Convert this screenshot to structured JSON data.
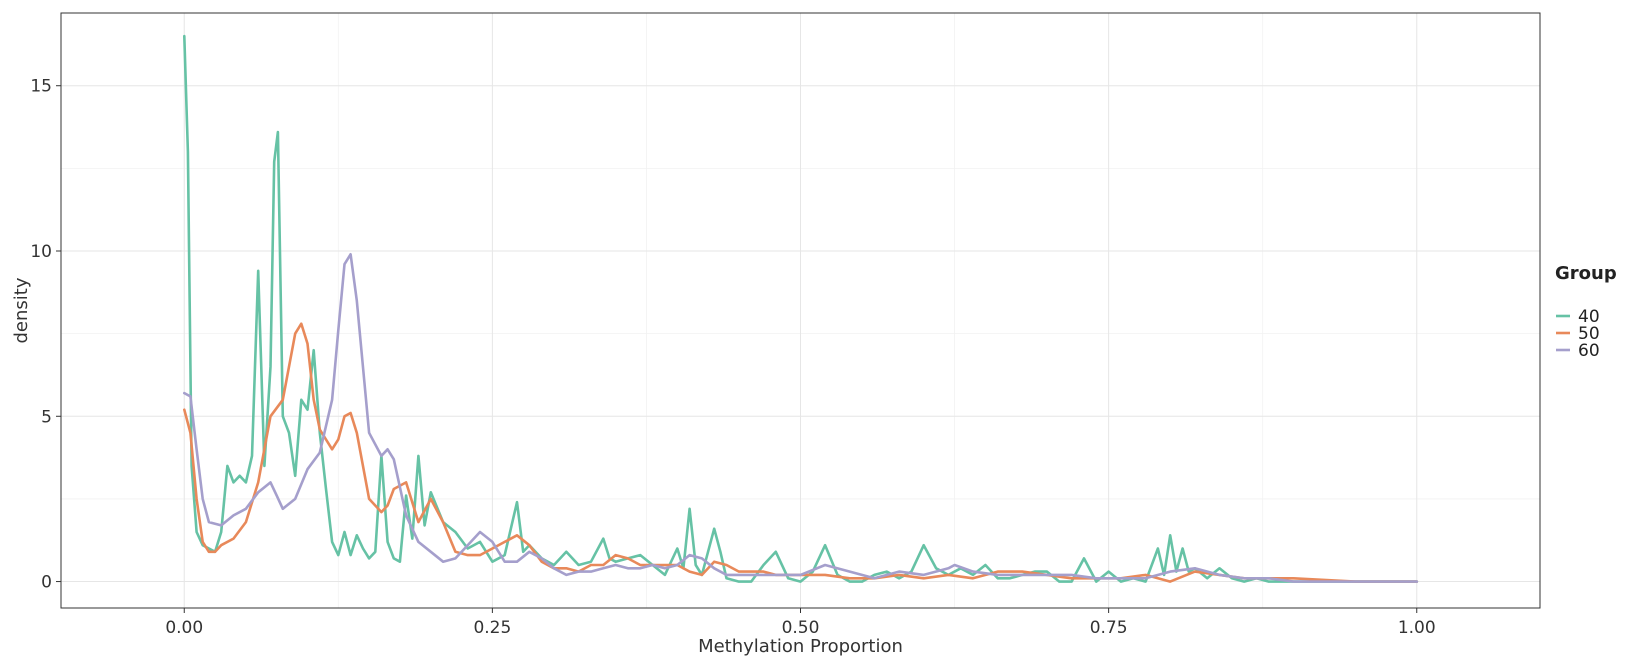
{
  "chart_data": {
    "type": "line",
    "title": "",
    "xlabel": "Methylation Proportion",
    "ylabel": "density",
    "xlim": [
      -0.1,
      1.1
    ],
    "ylim": [
      -0.8,
      17.2
    ],
    "x_ticks": [
      0.0,
      0.25,
      0.5,
      0.75,
      1.0
    ],
    "x_tick_labels": [
      "0.00",
      "0.25",
      "0.50",
      "0.75",
      "1.00"
    ],
    "y_ticks": [
      0,
      5,
      10,
      15
    ],
    "y_tick_labels": [
      "0",
      "5",
      "10",
      "15"
    ],
    "grid": true,
    "legend": {
      "title": "Group",
      "position": "right"
    },
    "series": [
      {
        "name": "40",
        "color": "#66c2a5",
        "x": [
          0.0,
          0.003,
          0.006,
          0.01,
          0.015,
          0.02,
          0.025,
          0.03,
          0.035,
          0.04,
          0.045,
          0.05,
          0.055,
          0.06,
          0.065,
          0.07,
          0.073,
          0.076,
          0.08,
          0.085,
          0.09,
          0.095,
          0.1,
          0.105,
          0.11,
          0.115,
          0.12,
          0.125,
          0.13,
          0.135,
          0.14,
          0.145,
          0.15,
          0.155,
          0.16,
          0.165,
          0.17,
          0.175,
          0.18,
          0.185,
          0.19,
          0.195,
          0.2,
          0.21,
          0.22,
          0.23,
          0.24,
          0.25,
          0.26,
          0.27,
          0.275,
          0.28,
          0.29,
          0.3,
          0.31,
          0.32,
          0.33,
          0.34,
          0.345,
          0.35,
          0.36,
          0.37,
          0.38,
          0.39,
          0.4,
          0.405,
          0.41,
          0.415,
          0.42,
          0.43,
          0.435,
          0.44,
          0.45,
          0.46,
          0.47,
          0.48,
          0.49,
          0.5,
          0.51,
          0.52,
          0.53,
          0.54,
          0.55,
          0.56,
          0.57,
          0.58,
          0.59,
          0.6,
          0.61,
          0.62,
          0.63,
          0.64,
          0.65,
          0.66,
          0.67,
          0.68,
          0.69,
          0.7,
          0.71,
          0.72,
          0.73,
          0.74,
          0.75,
          0.76,
          0.77,
          0.78,
          0.79,
          0.795,
          0.8,
          0.805,
          0.81,
          0.815,
          0.82,
          0.83,
          0.84,
          0.85,
          0.86,
          0.87,
          0.88,
          0.9,
          0.95,
          1.0
        ],
        "y": [
          16.5,
          13.0,
          3.5,
          1.5,
          1.1,
          1.0,
          0.9,
          1.5,
          3.5,
          3.0,
          3.2,
          3.0,
          3.8,
          9.4,
          3.5,
          6.5,
          12.7,
          13.6,
          5.0,
          4.5,
          3.2,
          5.5,
          5.2,
          7.0,
          4.5,
          2.8,
          1.2,
          0.8,
          1.5,
          0.8,
          1.4,
          1.0,
          0.7,
          0.9,
          3.8,
          1.2,
          0.7,
          0.6,
          2.6,
          1.3,
          3.8,
          1.7,
          2.7,
          1.8,
          1.5,
          1.0,
          1.2,
          0.6,
          0.8,
          2.4,
          0.9,
          1.1,
          0.7,
          0.5,
          0.9,
          0.5,
          0.6,
          1.3,
          0.7,
          0.6,
          0.7,
          0.8,
          0.5,
          0.2,
          1.0,
          0.4,
          2.2,
          0.5,
          0.2,
          1.6,
          0.9,
          0.1,
          0.0,
          0.0,
          0.5,
          0.9,
          0.1,
          0.0,
          0.3,
          1.1,
          0.2,
          0.0,
          0.0,
          0.2,
          0.3,
          0.1,
          0.3,
          1.1,
          0.4,
          0.2,
          0.4,
          0.2,
          0.5,
          0.1,
          0.1,
          0.2,
          0.3,
          0.3,
          0.0,
          0.0,
          0.7,
          0.0,
          0.3,
          0.0,
          0.1,
          0.0,
          1.0,
          0.2,
          1.4,
          0.3,
          1.0,
          0.3,
          0.4,
          0.1,
          0.4,
          0.1,
          0.0,
          0.1,
          0.0,
          0.0,
          0.0,
          0.0
        ]
      },
      {
        "name": "50",
        "color": "#e8895a",
        "x": [
          0.0,
          0.005,
          0.01,
          0.015,
          0.02,
          0.025,
          0.03,
          0.04,
          0.05,
          0.06,
          0.07,
          0.08,
          0.09,
          0.095,
          0.1,
          0.105,
          0.11,
          0.12,
          0.125,
          0.13,
          0.135,
          0.14,
          0.15,
          0.16,
          0.165,
          0.17,
          0.18,
          0.19,
          0.2,
          0.21,
          0.22,
          0.23,
          0.24,
          0.25,
          0.26,
          0.27,
          0.28,
          0.29,
          0.3,
          0.31,
          0.32,
          0.33,
          0.34,
          0.35,
          0.36,
          0.37,
          0.38,
          0.39,
          0.4,
          0.41,
          0.42,
          0.43,
          0.44,
          0.45,
          0.46,
          0.47,
          0.48,
          0.5,
          0.52,
          0.54,
          0.56,
          0.58,
          0.6,
          0.62,
          0.64,
          0.66,
          0.68,
          0.7,
          0.72,
          0.74,
          0.76,
          0.78,
          0.8,
          0.82,
          0.84,
          0.86,
          0.88,
          0.9,
          0.95,
          1.0
        ],
        "y": [
          5.2,
          4.5,
          2.5,
          1.2,
          0.9,
          0.9,
          1.1,
          1.3,
          1.8,
          3.0,
          5.0,
          5.5,
          7.5,
          7.8,
          7.2,
          5.5,
          4.6,
          4.0,
          4.3,
          5.0,
          5.1,
          4.5,
          2.5,
          2.1,
          2.3,
          2.8,
          3.0,
          1.8,
          2.5,
          1.8,
          0.9,
          0.8,
          0.8,
          1.0,
          1.2,
          1.4,
          1.1,
          0.6,
          0.4,
          0.4,
          0.3,
          0.5,
          0.5,
          0.8,
          0.7,
          0.5,
          0.5,
          0.5,
          0.5,
          0.3,
          0.2,
          0.6,
          0.5,
          0.3,
          0.3,
          0.3,
          0.2,
          0.2,
          0.2,
          0.1,
          0.1,
          0.2,
          0.1,
          0.2,
          0.1,
          0.3,
          0.3,
          0.2,
          0.1,
          0.1,
          0.1,
          0.2,
          0.0,
          0.3,
          0.2,
          0.1,
          0.1,
          0.1,
          0.0,
          0.0
        ]
      },
      {
        "name": "60",
        "color": "#a59fcc",
        "x": [
          0.0,
          0.005,
          0.01,
          0.015,
          0.02,
          0.03,
          0.04,
          0.05,
          0.06,
          0.07,
          0.075,
          0.08,
          0.09,
          0.1,
          0.11,
          0.12,
          0.125,
          0.13,
          0.135,
          0.14,
          0.15,
          0.16,
          0.165,
          0.17,
          0.18,
          0.19,
          0.2,
          0.21,
          0.22,
          0.23,
          0.24,
          0.25,
          0.26,
          0.27,
          0.28,
          0.29,
          0.3,
          0.31,
          0.32,
          0.33,
          0.34,
          0.35,
          0.36,
          0.37,
          0.38,
          0.39,
          0.4,
          0.41,
          0.42,
          0.43,
          0.44,
          0.46,
          0.48,
          0.5,
          0.52,
          0.54,
          0.56,
          0.58,
          0.6,
          0.62,
          0.625,
          0.64,
          0.66,
          0.68,
          0.7,
          0.72,
          0.74,
          0.76,
          0.78,
          0.8,
          0.82,
          0.84,
          0.86,
          0.88,
          0.9,
          0.95,
          1.0
        ],
        "y": [
          5.7,
          5.6,
          4.0,
          2.5,
          1.8,
          1.7,
          2.0,
          2.2,
          2.7,
          3.0,
          2.6,
          2.2,
          2.5,
          3.4,
          3.9,
          5.5,
          7.6,
          9.6,
          9.9,
          8.5,
          4.5,
          3.8,
          4.0,
          3.7,
          2.0,
          1.2,
          0.9,
          0.6,
          0.7,
          1.1,
          1.5,
          1.2,
          0.6,
          0.6,
          0.9,
          0.7,
          0.4,
          0.2,
          0.3,
          0.3,
          0.4,
          0.5,
          0.4,
          0.4,
          0.5,
          0.4,
          0.5,
          0.8,
          0.7,
          0.4,
          0.2,
          0.2,
          0.2,
          0.2,
          0.5,
          0.3,
          0.1,
          0.3,
          0.2,
          0.4,
          0.5,
          0.3,
          0.2,
          0.2,
          0.2,
          0.2,
          0.1,
          0.1,
          0.1,
          0.3,
          0.4,
          0.2,
          0.1,
          0.1,
          0.0,
          0.0,
          0.0
        ]
      }
    ]
  }
}
